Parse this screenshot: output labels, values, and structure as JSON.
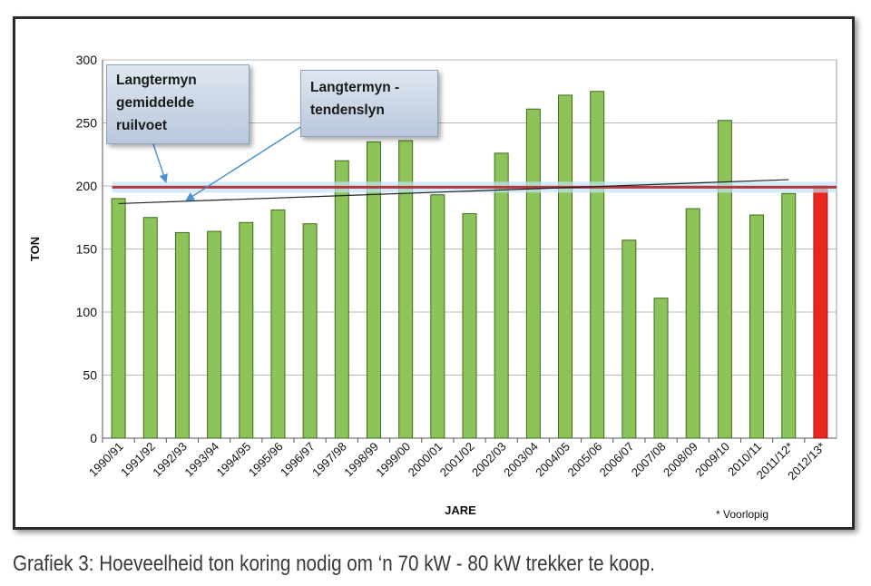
{
  "caption": "Grafiek 3: Hoeveelheid ton koring nodig om ‘n 70 kW - 80 kW trekker te koop.",
  "footnote": "* Voorlopig",
  "callouts": {
    "average": [
      "Langtermyn",
      "gemiddelde",
      "ruilvoet"
    ],
    "trend": [
      "Langtermyn -",
      "tendenslyn"
    ]
  },
  "chart_data": {
    "type": "bar",
    "title": "",
    "xlabel": "JARE",
    "ylabel": "TON",
    "ylim": [
      0,
      300
    ],
    "yticks": [
      0,
      50,
      100,
      150,
      200,
      250,
      300
    ],
    "grid": true,
    "categories": [
      "1990/91",
      "1991/92",
      "1992/93",
      "1993/94",
      "1994/95",
      "1995/96",
      "1996/97",
      "1997/98",
      "1998/99",
      "1999/00",
      "2000/01",
      "2001/02",
      "2002/03",
      "2003/04",
      "2004/05",
      "2005/06",
      "2006/07",
      "2007/08",
      "2008/09",
      "2009/10",
      "2010/11",
      "2011/12*",
      "2012/13*"
    ],
    "values": [
      190,
      175,
      163,
      164,
      171,
      181,
      170,
      220,
      235,
      236,
      193,
      178,
      226,
      261,
      272,
      275,
      157,
      111,
      182,
      252,
      177,
      194,
      200
    ],
    "bar_color": "#8cc45a",
    "highlight_color": "#e8281e",
    "highlight_index": 22,
    "average_line": {
      "value": 199,
      "color": "#b5383e"
    },
    "trend_line": {
      "start": 186,
      "end": 205,
      "color": "#222222"
    }
  }
}
